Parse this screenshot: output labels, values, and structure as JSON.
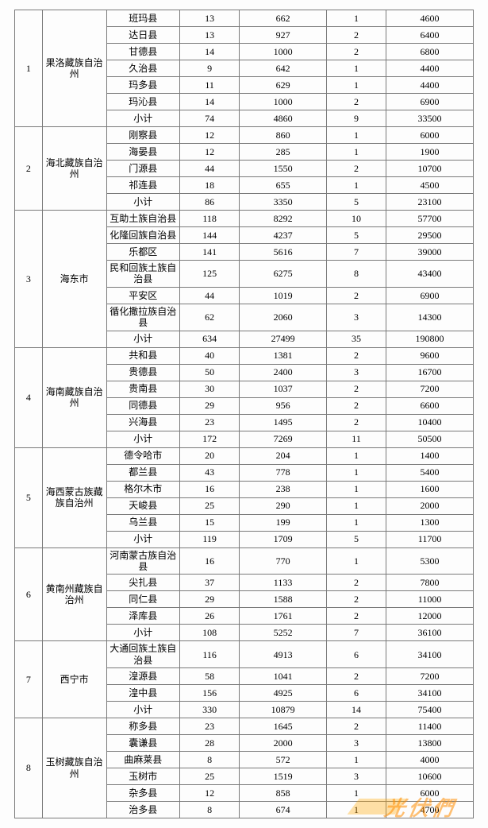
{
  "colors": {
    "background": "#fdfdfd",
    "border": "#7a7a7a",
    "watermark": "rgba(255,140,0,0.55)"
  },
  "typography": {
    "font_family": "SimSun",
    "base_fontsize": 12
  },
  "col_widths_pct": [
    6,
    14,
    16,
    13,
    19,
    13,
    19
  ],
  "watermark_text": "光伏們",
  "regions": [
    {
      "idx": "1",
      "name": "果洛藏族自治州",
      "rows": [
        {
          "a": "班玛县",
          "b": "13",
          "c": "662",
          "d": "1",
          "e": "4600"
        },
        {
          "a": "达日县",
          "b": "13",
          "c": "927",
          "d": "2",
          "e": "6400"
        },
        {
          "a": "甘德县",
          "b": "14",
          "c": "1000",
          "d": "2",
          "e": "6800"
        },
        {
          "a": "久治县",
          "b": "9",
          "c": "642",
          "d": "1",
          "e": "4400"
        },
        {
          "a": "玛多县",
          "b": "11",
          "c": "629",
          "d": "1",
          "e": "4400"
        },
        {
          "a": "玛沁县",
          "b": "14",
          "c": "1000",
          "d": "2",
          "e": "6900"
        },
        {
          "a": "小计",
          "b": "74",
          "c": "4860",
          "d": "9",
          "e": "33500"
        }
      ]
    },
    {
      "idx": "2",
      "name": "海北藏族自治州",
      "rows": [
        {
          "a": "刚察县",
          "b": "12",
          "c": "860",
          "d": "1",
          "e": "6000"
        },
        {
          "a": "海晏县",
          "b": "12",
          "c": "285",
          "d": "1",
          "e": "1900"
        },
        {
          "a": "门源县",
          "b": "44",
          "c": "1550",
          "d": "2",
          "e": "10700"
        },
        {
          "a": "祁连县",
          "b": "18",
          "c": "655",
          "d": "1",
          "e": "4500"
        },
        {
          "a": "小计",
          "b": "86",
          "c": "3350",
          "d": "5",
          "e": "23100"
        }
      ]
    },
    {
      "idx": "3",
      "name": "海东市",
      "rows": [
        {
          "a": "互助土族自治县",
          "b": "118",
          "c": "8292",
          "d": "10",
          "e": "57700"
        },
        {
          "a": "化隆回族自治县",
          "b": "144",
          "c": "4237",
          "d": "5",
          "e": "29500"
        },
        {
          "a": "乐都区",
          "b": "141",
          "c": "5616",
          "d": "7",
          "e": "39000"
        },
        {
          "a": "民和回族土族自治县",
          "b": "125",
          "c": "6275",
          "d": "8",
          "e": "43400"
        },
        {
          "a": "平安区",
          "b": "44",
          "c": "1019",
          "d": "2",
          "e": "6900"
        },
        {
          "a": "循化撒拉族自治县",
          "b": "62",
          "c": "2060",
          "d": "3",
          "e": "14300"
        },
        {
          "a": "小计",
          "b": "634",
          "c": "27499",
          "d": "35",
          "e": "190800"
        }
      ]
    },
    {
      "idx": "4",
      "name": "海南藏族自治州",
      "rows": [
        {
          "a": "共和县",
          "b": "40",
          "c": "1381",
          "d": "2",
          "e": "9600"
        },
        {
          "a": "贵德县",
          "b": "50",
          "c": "2400",
          "d": "3",
          "e": "16700"
        },
        {
          "a": "贵南县",
          "b": "30",
          "c": "1037",
          "d": "2",
          "e": "7200"
        },
        {
          "a": "同德县",
          "b": "29",
          "c": "956",
          "d": "2",
          "e": "6600"
        },
        {
          "a": "兴海县",
          "b": "23",
          "c": "1495",
          "d": "2",
          "e": "10400"
        },
        {
          "a": "小计",
          "b": "172",
          "c": "7269",
          "d": "11",
          "e": "50500"
        }
      ]
    },
    {
      "idx": "5",
      "name": "海西蒙古族藏族自治州",
      "rows": [
        {
          "a": "德令哈市",
          "b": "20",
          "c": "204",
          "d": "1",
          "e": "1400"
        },
        {
          "a": "都兰县",
          "b": "43",
          "c": "778",
          "d": "1",
          "e": "5400"
        },
        {
          "a": "格尔木市",
          "b": "16",
          "c": "238",
          "d": "1",
          "e": "1600"
        },
        {
          "a": "天峻县",
          "b": "25",
          "c": "290",
          "d": "1",
          "e": "2000"
        },
        {
          "a": "乌兰县",
          "b": "15",
          "c": "199",
          "d": "1",
          "e": "1300"
        },
        {
          "a": "小计",
          "b": "119",
          "c": "1709",
          "d": "5",
          "e": "11700"
        }
      ]
    },
    {
      "idx": "6",
      "name": "黄南州藏族自治州",
      "rows": [
        {
          "a": "河南蒙古族自治县",
          "b": "16",
          "c": "770",
          "d": "1",
          "e": "5300"
        },
        {
          "a": "尖扎县",
          "b": "37",
          "c": "1133",
          "d": "2",
          "e": "7800"
        },
        {
          "a": "同仁县",
          "b": "29",
          "c": "1588",
          "d": "2",
          "e": "11000"
        },
        {
          "a": "泽库县",
          "b": "26",
          "c": "1761",
          "d": "2",
          "e": "12000"
        },
        {
          "a": "小计",
          "b": "108",
          "c": "5252",
          "d": "7",
          "e": "36100"
        }
      ]
    },
    {
      "idx": "7",
      "name": "西宁市",
      "rows": [
        {
          "a": "大通回族土族自治县",
          "b": "116",
          "c": "4913",
          "d": "6",
          "e": "34100"
        },
        {
          "a": "湟源县",
          "b": "58",
          "c": "1041",
          "d": "2",
          "e": "7200"
        },
        {
          "a": "湟中县",
          "b": "156",
          "c": "4925",
          "d": "6",
          "e": "34100"
        },
        {
          "a": "小计",
          "b": "330",
          "c": "10879",
          "d": "14",
          "e": "75400"
        }
      ]
    },
    {
      "idx": "8",
      "name": "玉树藏族自治州",
      "rows": [
        {
          "a": "称多县",
          "b": "23",
          "c": "1645",
          "d": "2",
          "e": "11400"
        },
        {
          "a": "囊谦县",
          "b": "28",
          "c": "2000",
          "d": "3",
          "e": "13800"
        },
        {
          "a": "曲麻莱县",
          "b": "8",
          "c": "572",
          "d": "1",
          "e": "4000"
        },
        {
          "a": "玉树市",
          "b": "25",
          "c": "1519",
          "d": "3",
          "e": "10600"
        },
        {
          "a": "杂多县",
          "b": "12",
          "c": "858",
          "d": "1",
          "e": "6000"
        },
        {
          "a": "治多县",
          "b": "8",
          "c": "674",
          "d": "1",
          "e": "4700"
        }
      ]
    }
  ]
}
